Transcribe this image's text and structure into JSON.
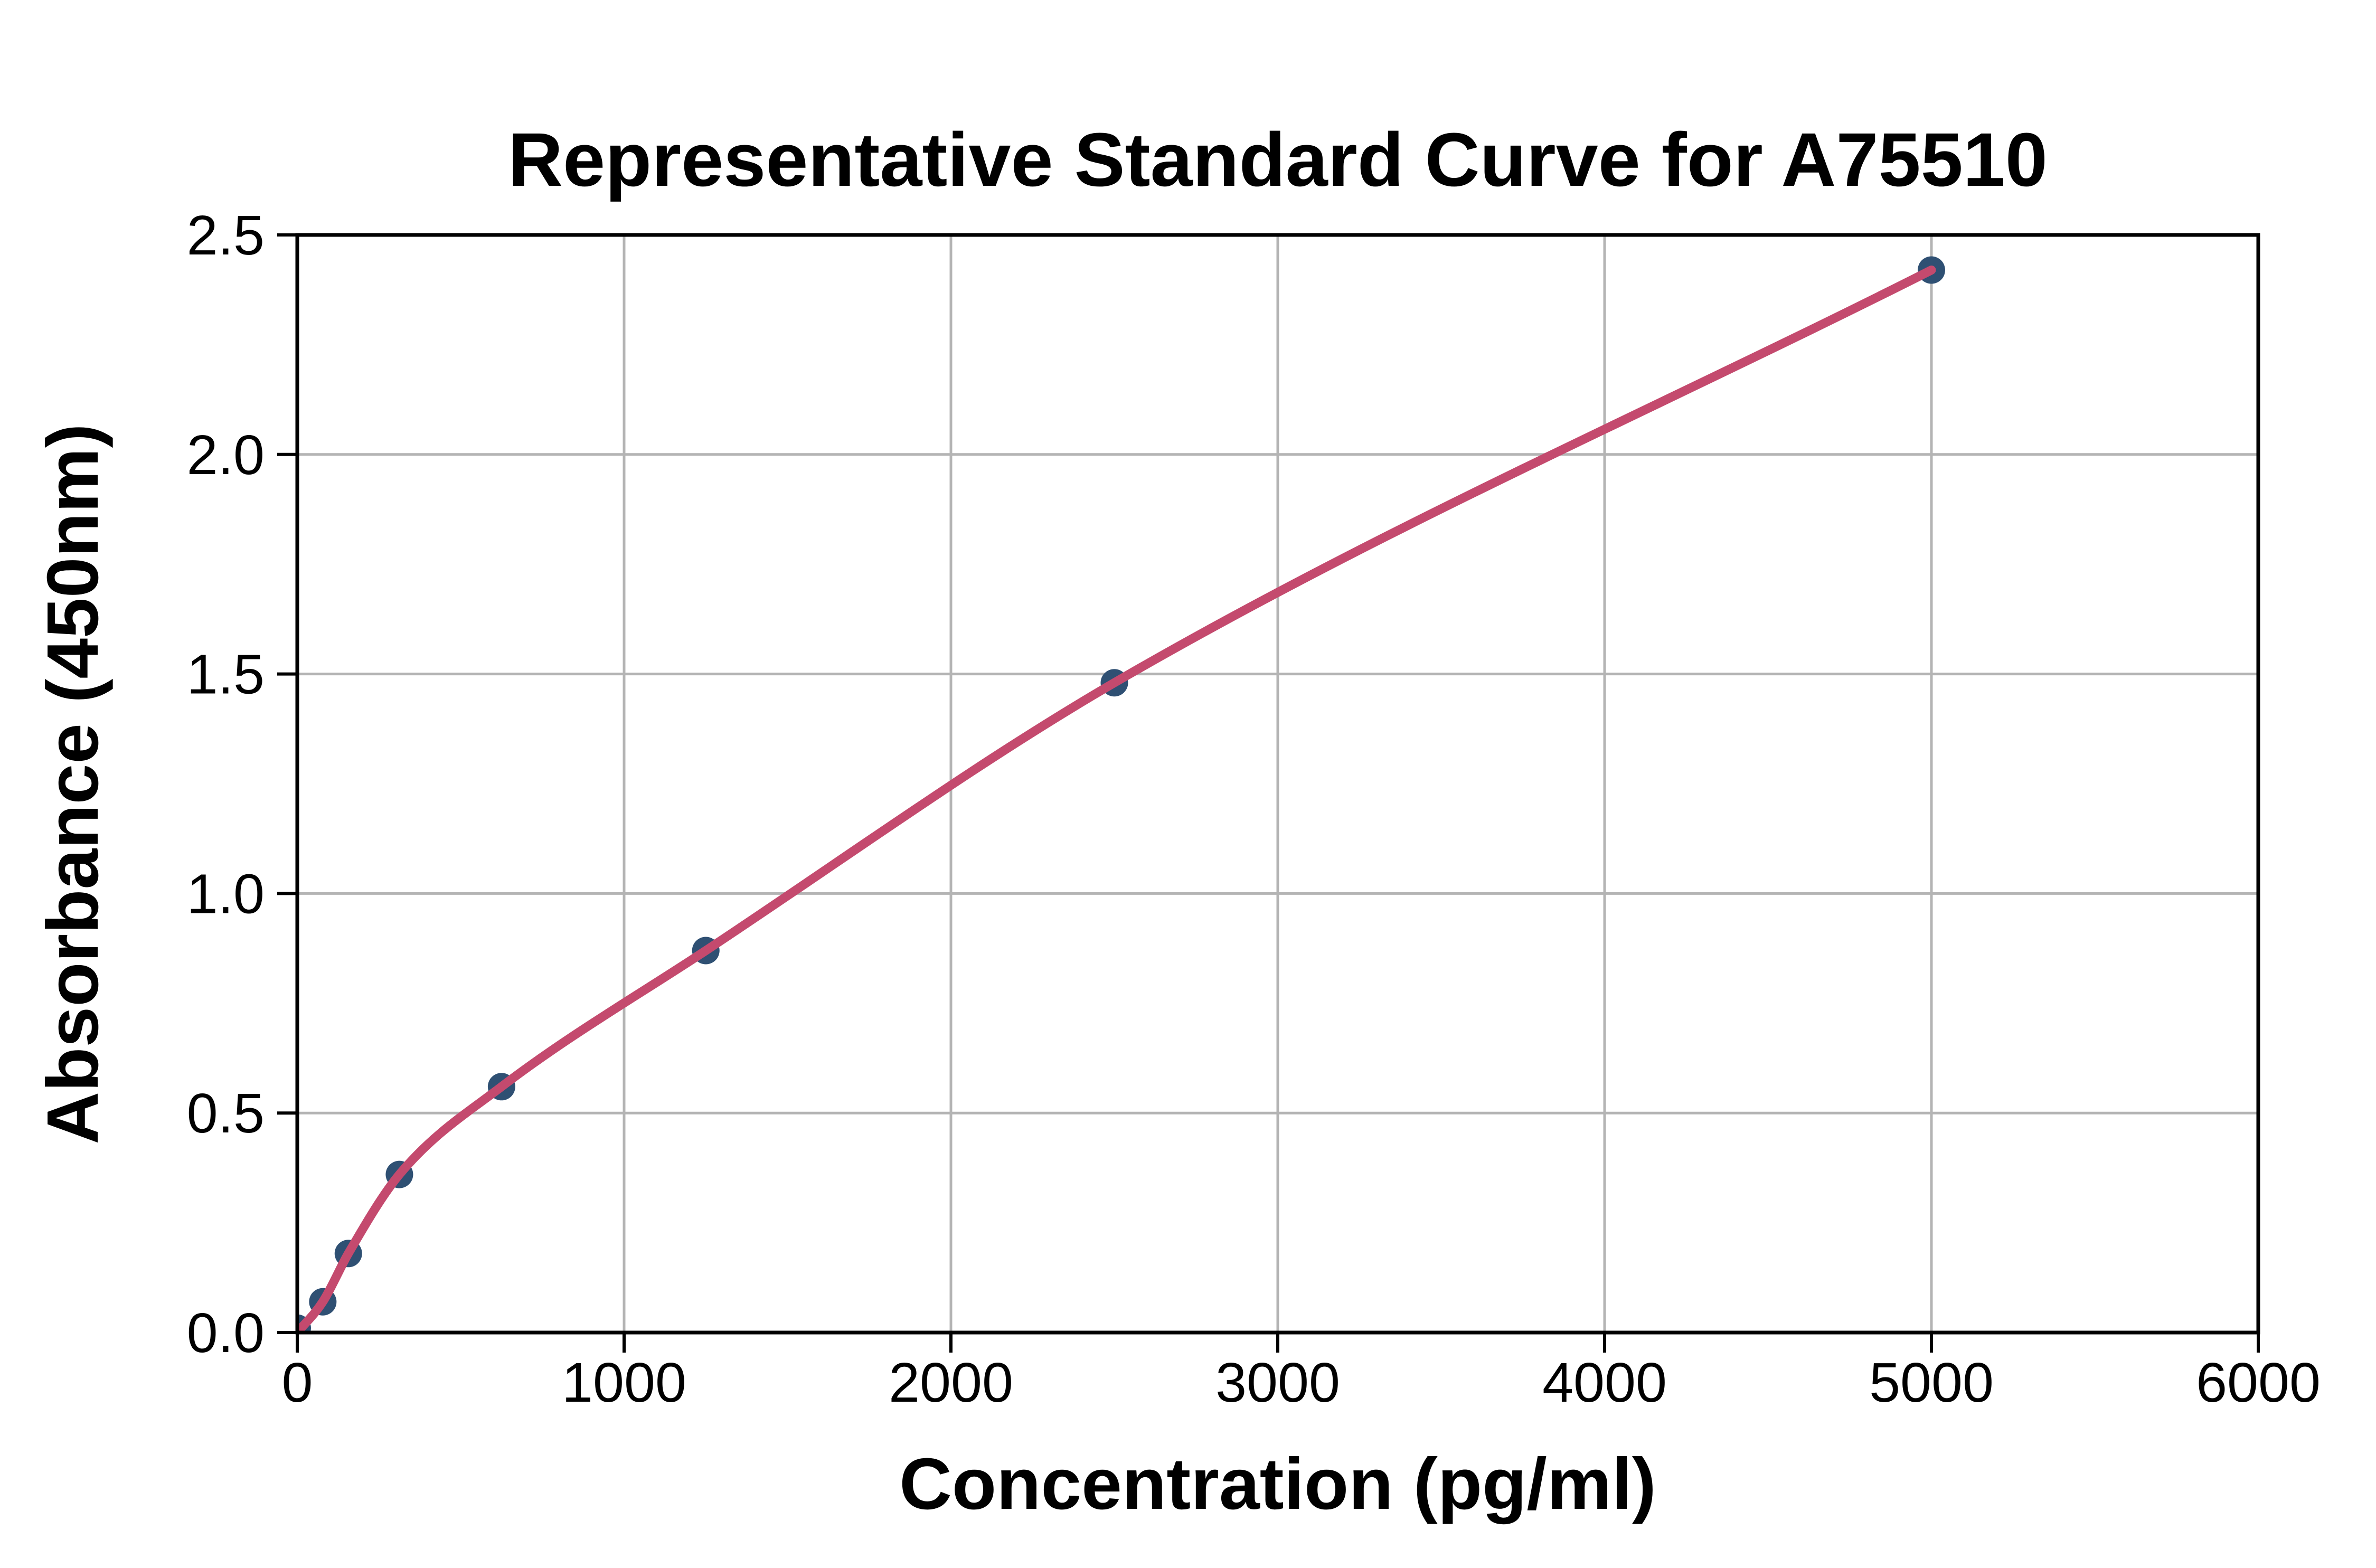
{
  "chart_data": {
    "type": "scatter",
    "title": "Representative Standard Curve for A75510",
    "xlabel": "Concentration (pg/ml)",
    "ylabel": "Absorbance (450nm)",
    "xlim": [
      0,
      6000
    ],
    "ylim": [
      0.0,
      2.5
    ],
    "xticks": [
      0,
      1000,
      2000,
      3000,
      4000,
      5000,
      6000
    ],
    "yticks": [
      0.0,
      0.5,
      1.0,
      1.5,
      2.0,
      2.5
    ],
    "xtick_labels": [
      "0",
      "1000",
      "2000",
      "3000",
      "4000",
      "5000",
      "6000"
    ],
    "ytick_labels": [
      "0.0",
      "0.5",
      "1.0",
      "1.5",
      "2.0",
      "2.5"
    ],
    "grid": true,
    "legend_position": "none",
    "series": [
      {
        "name": "standard-points",
        "type": "scatter",
        "color": "#2f5073",
        "x": [
          0,
          78.1,
          156.3,
          312.5,
          625,
          1250,
          2500,
          5000
        ],
        "y": [
          0.01,
          0.07,
          0.18,
          0.36,
          0.56,
          0.87,
          1.48,
          2.42
        ]
      },
      {
        "name": "fitted-curve",
        "type": "line",
        "color": "#c44a6e",
        "x": [
          0,
          78.1,
          156.3,
          312.5,
          625,
          1250,
          2500,
          5000
        ],
        "y": [
          0.0,
          0.07,
          0.18,
          0.36,
          0.56,
          0.87,
          1.48,
          2.42
        ]
      }
    ],
    "colors": {
      "axis": "#000000",
      "grid": "#b4b4b4",
      "marker": "#2f5073",
      "curve": "#c44a6e",
      "background": "#ffffff"
    }
  }
}
